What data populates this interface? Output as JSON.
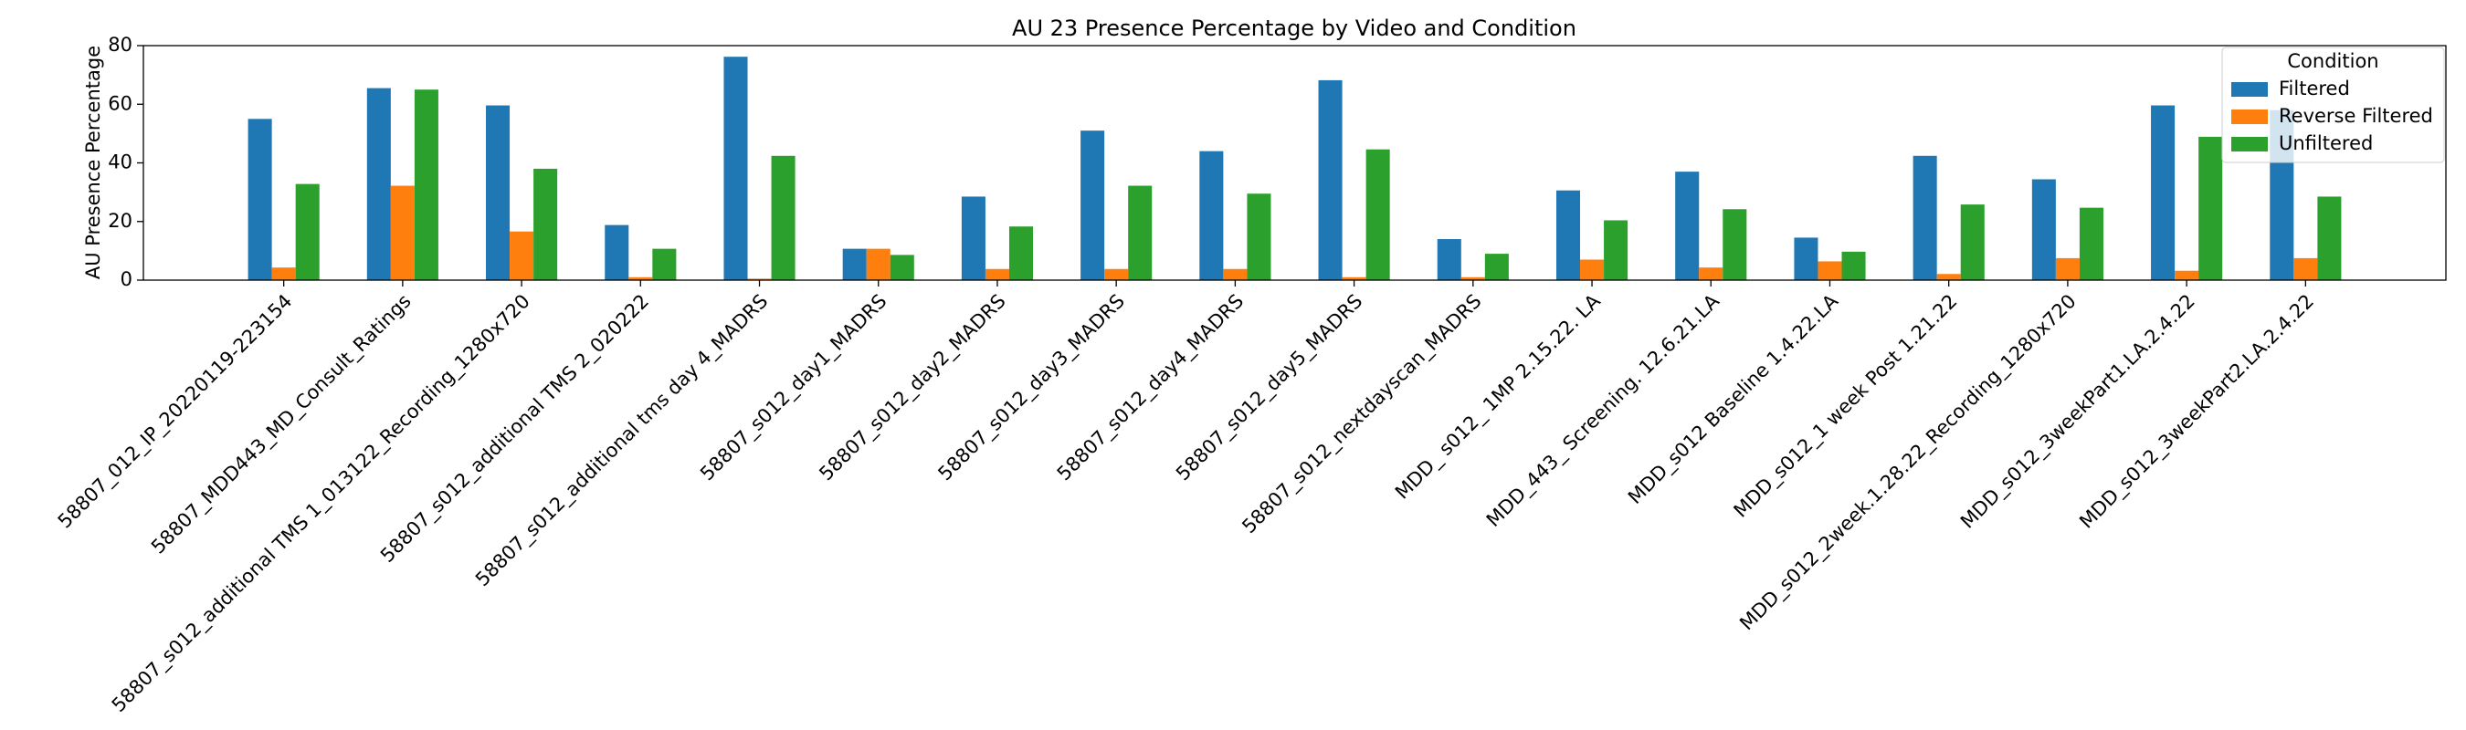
{
  "chart_data": {
    "type": "bar",
    "title": "AU 23 Presence Percentage by Video and Condition",
    "y_label": "AU Presence Percentage",
    "legend_title": "Condition",
    "legend_loc": "upper right",
    "categories": [
      "58807_012_IP_20220119-223154",
      "58807_MDD443_MD_Consult_Ratings",
      "58807_s012_additional TMS 1_013122_Recording_1280x720",
      "58807_s012_additional TMS 2_020222",
      "58807_s012_additional tms day 4_MADRS",
      "58807_s012_day1_MADRS",
      "58807_s012_day2_MADRS",
      "58807_s012_day3_MADRS",
      "58807_s012_day4_MADRS",
      "58807_s012_day5_MADRS",
      "58807_s012_nextdayscan_MADRS",
      "MDD_ s012_ 1MP  2.15.22. LA",
      "MDD_443_ Screening. 12.6.21.LA",
      "MDD_s012 Baseline 1.4.22.LA",
      "MDD_s012_1 week Post 1.21.22",
      "MDD_s012_2week.1.28.22_Recording_1280x720",
      "MDD_s012_3weekPart1.LA.2.4.22",
      "MDD_s012_3weekPart2.LA.2.4.22"
    ],
    "series": [
      {
        "name": "Filtered",
        "color": "#1f77b4",
        "values": [
          55,
          65.5,
          59.6,
          18.8,
          76.2,
          10.7,
          28.5,
          51,
          44,
          68.2,
          14,
          30.6,
          37,
          14.5,
          42.4,
          34.4,
          59.6,
          58
        ]
      },
      {
        "name": "Reverse Filtered",
        "color": "#ff7f0e",
        "values": [
          4.3,
          32.2,
          16.6,
          1,
          0.5,
          10.7,
          3.8,
          3.8,
          3.8,
          1,
          1,
          7,
          4.3,
          6.4,
          2.1,
          7.5,
          3.2,
          7.5
        ]
      },
      {
        "name": "Unfiltered",
        "color": "#2ca02c",
        "values": [
          32.8,
          65,
          38,
          10.7,
          42.4,
          8.6,
          18.3,
          32.2,
          29.5,
          44.6,
          9,
          20.4,
          24.2,
          9.7,
          25.8,
          24.7,
          48.9,
          28.5
        ]
      }
    ],
    "ylim": [
      0,
      80
    ],
    "yticks": [
      0,
      20,
      40,
      60,
      80
    ]
  }
}
